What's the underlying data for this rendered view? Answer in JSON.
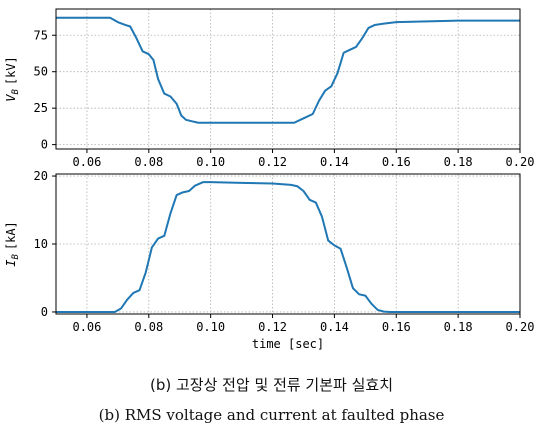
{
  "chart_data": [
    {
      "type": "line",
      "ylabel_main": "V",
      "ylabel_sub": "B",
      "ylabel_unit": "[kV]",
      "xlim": [
        0.05,
        0.2
      ],
      "ylim": [
        -3,
        93
      ],
      "xticks": [
        0.06,
        0.08,
        0.1,
        0.12,
        0.14,
        0.16,
        0.18,
        0.2
      ],
      "xtick_labels": [
        "0.06",
        "0.08",
        "0.10",
        "0.12",
        "0.14",
        "0.16",
        "0.18",
        "0.20"
      ],
      "yticks": [
        0,
        25,
        50,
        75
      ],
      "ytick_labels": [
        "0",
        "25",
        "50",
        "75"
      ],
      "grid": true,
      "series": [
        {
          "color": "#1f77b4",
          "x": [
            0.05,
            0.06,
            0.0675,
            0.07,
            0.0725,
            0.074,
            0.076,
            0.078,
            0.08,
            0.0815,
            0.083,
            0.085,
            0.087,
            0.089,
            0.0905,
            0.092,
            0.094,
            0.096,
            0.1,
            0.11,
            0.12,
            0.127,
            0.129,
            0.131,
            0.133,
            0.135,
            0.137,
            0.139,
            0.141,
            0.143,
            0.145,
            0.147,
            0.149,
            0.151,
            0.153,
            0.156,
            0.16,
            0.17,
            0.18,
            0.19,
            0.2
          ],
          "y": [
            87,
            87,
            87,
            84,
            82,
            81,
            73,
            64,
            62,
            58,
            45,
            35,
            33,
            28,
            20,
            17,
            16,
            15,
            15,
            15,
            15,
            15,
            17,
            19,
            21,
            30,
            37,
            40,
            49,
            63,
            65,
            67,
            73,
            80,
            82,
            83,
            84,
            84.5,
            85,
            85,
            85
          ]
        }
      ]
    },
    {
      "type": "line",
      "ylabel_main": "I",
      "ylabel_sub": "B",
      "ylabel_unit": "[kA]",
      "xlabel": "time [sec]",
      "xlim": [
        0.05,
        0.2
      ],
      "ylim": [
        -0.3,
        20.3
      ],
      "xticks": [
        0.06,
        0.08,
        0.1,
        0.12,
        0.14,
        0.16,
        0.18,
        0.2
      ],
      "xtick_labels": [
        "0.06",
        "0.08",
        "0.10",
        "0.12",
        "0.14",
        "0.16",
        "0.18",
        "0.20"
      ],
      "yticks": [
        0,
        10,
        20
      ],
      "ytick_labels": [
        "0",
        "10",
        "20"
      ],
      "grid": true,
      "series": [
        {
          "color": "#1f77b4",
          "x": [
            0.05,
            0.06,
            0.069,
            0.071,
            0.073,
            0.075,
            0.077,
            0.079,
            0.081,
            0.083,
            0.085,
            0.087,
            0.089,
            0.091,
            0.093,
            0.095,
            0.0975,
            0.1,
            0.11,
            0.12,
            0.126,
            0.128,
            0.13,
            0.132,
            0.134,
            0.136,
            0.138,
            0.14,
            0.142,
            0.144,
            0.146,
            0.148,
            0.15,
            0.152,
            0.154,
            0.156,
            0.158,
            0.16,
            0.17,
            0.18,
            0.19,
            0.2
          ],
          "y": [
            0,
            0,
            0,
            0.5,
            1.8,
            2.8,
            3.2,
            5.8,
            9.5,
            10.8,
            11.2,
            14.5,
            17.2,
            17.6,
            17.8,
            18.6,
            19.1,
            19.1,
            19.0,
            18.9,
            18.7,
            18.5,
            17.8,
            16.5,
            16.1,
            14.0,
            10.5,
            9.8,
            9.3,
            6.5,
            3.5,
            2.6,
            2.4,
            1.2,
            0.3,
            0.05,
            0,
            0,
            0,
            0,
            0,
            0
          ]
        }
      ]
    }
  ],
  "captions": {
    "korean": "(b) 고장상 전압 및 전류 기본파 실효치",
    "english": "(b) RMS voltage and current at faulted phase"
  }
}
